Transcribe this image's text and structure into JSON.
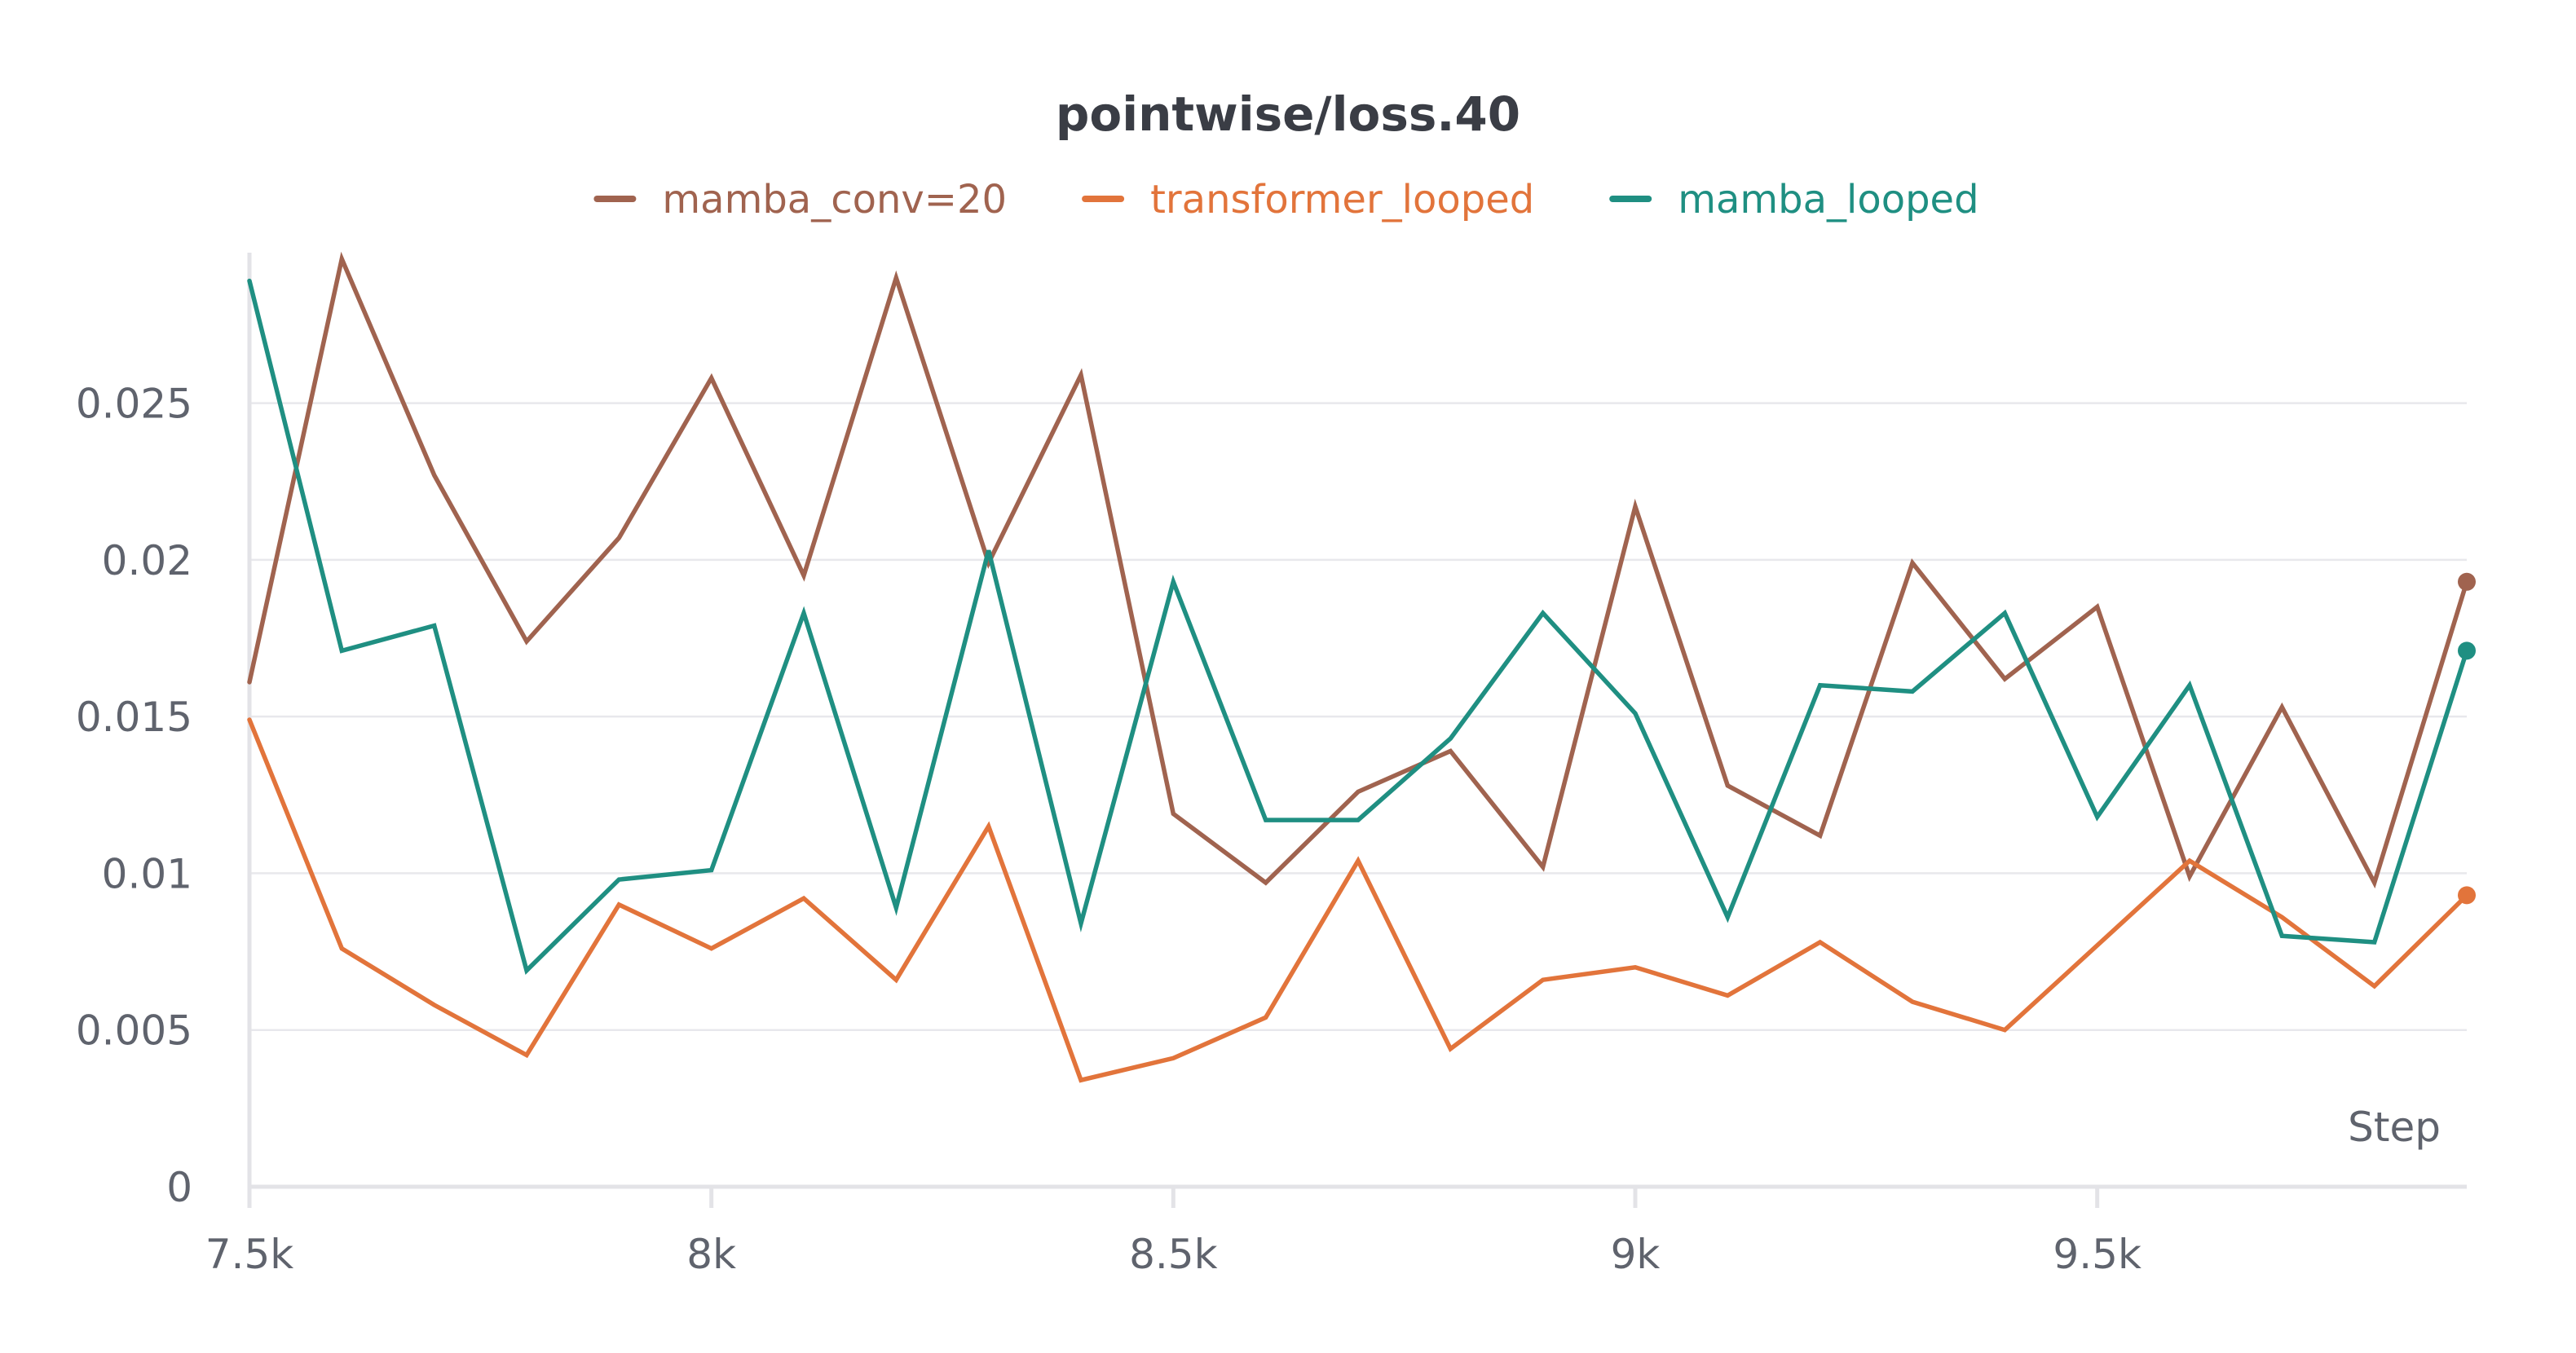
{
  "chart_data": {
    "type": "line",
    "title": "pointwise/loss.40",
    "xlabel": "Step",
    "ylabel": "",
    "x": [
      7500,
      7600,
      7700,
      7800,
      7900,
      8000,
      8100,
      8200,
      8300,
      8400,
      8500,
      8600,
      8700,
      8800,
      8900,
      9000,
      9100,
      9200,
      9300,
      9400,
      9500,
      9600,
      9700,
      9800,
      9900
    ],
    "xlim": [
      7500,
      9900
    ],
    "ylim": [
      0,
      0.0298
    ],
    "x_ticks": [
      7500,
      8000,
      8500,
      9000,
      9500
    ],
    "x_tick_labels": [
      "7.5k",
      "8k",
      "8.5k",
      "9k",
      "9.5k"
    ],
    "y_ticks": [
      0,
      0.005,
      0.01,
      0.015,
      0.02,
      0.025
    ],
    "y_tick_labels": [
      "0",
      "0.005",
      "0.01",
      "0.015",
      "0.02",
      "0.025"
    ],
    "grid": "horizontal",
    "legend_position": "top-center",
    "series": [
      {
        "name": "mamba_conv=20",
        "color": "#a0634f",
        "end_marker": true,
        "values": [
          0.0161,
          0.0296,
          0.0227,
          0.0174,
          0.0207,
          0.0258,
          0.0195,
          0.029,
          0.0199,
          0.0259,
          0.0119,
          0.0097,
          0.0126,
          0.0139,
          0.0102,
          0.0217,
          0.0128,
          0.0112,
          0.0199,
          0.0162,
          0.0185,
          0.0099,
          0.0153,
          0.0097,
          0.0193
        ]
      },
      {
        "name": "transformer_looped",
        "color": "#e2743b",
        "end_marker": true,
        "values": [
          0.0149,
          0.0076,
          0.0058,
          0.0042,
          0.009,
          0.0076,
          0.0092,
          0.0066,
          0.0115,
          0.0034,
          0.0041,
          0.0054,
          0.0104,
          0.0044,
          0.0066,
          0.007,
          0.0061,
          0.0078,
          0.0059,
          0.005,
          0.0077,
          0.0104,
          0.0086,
          0.0064,
          0.0093
        ]
      },
      {
        "name": "mamba_looped",
        "color": "#1f8f82",
        "end_marker": true,
        "values": [
          0.0289,
          0.0171,
          0.0179,
          0.0069,
          0.0098,
          0.0101,
          0.0183,
          0.0089,
          0.0203,
          0.0084,
          0.0193,
          0.0117,
          0.0117,
          0.0143,
          0.0183,
          0.0151,
          0.0086,
          0.016,
          0.0158,
          0.0183,
          0.0118,
          0.016,
          0.008,
          0.0078,
          0.0171
        ]
      }
    ]
  }
}
